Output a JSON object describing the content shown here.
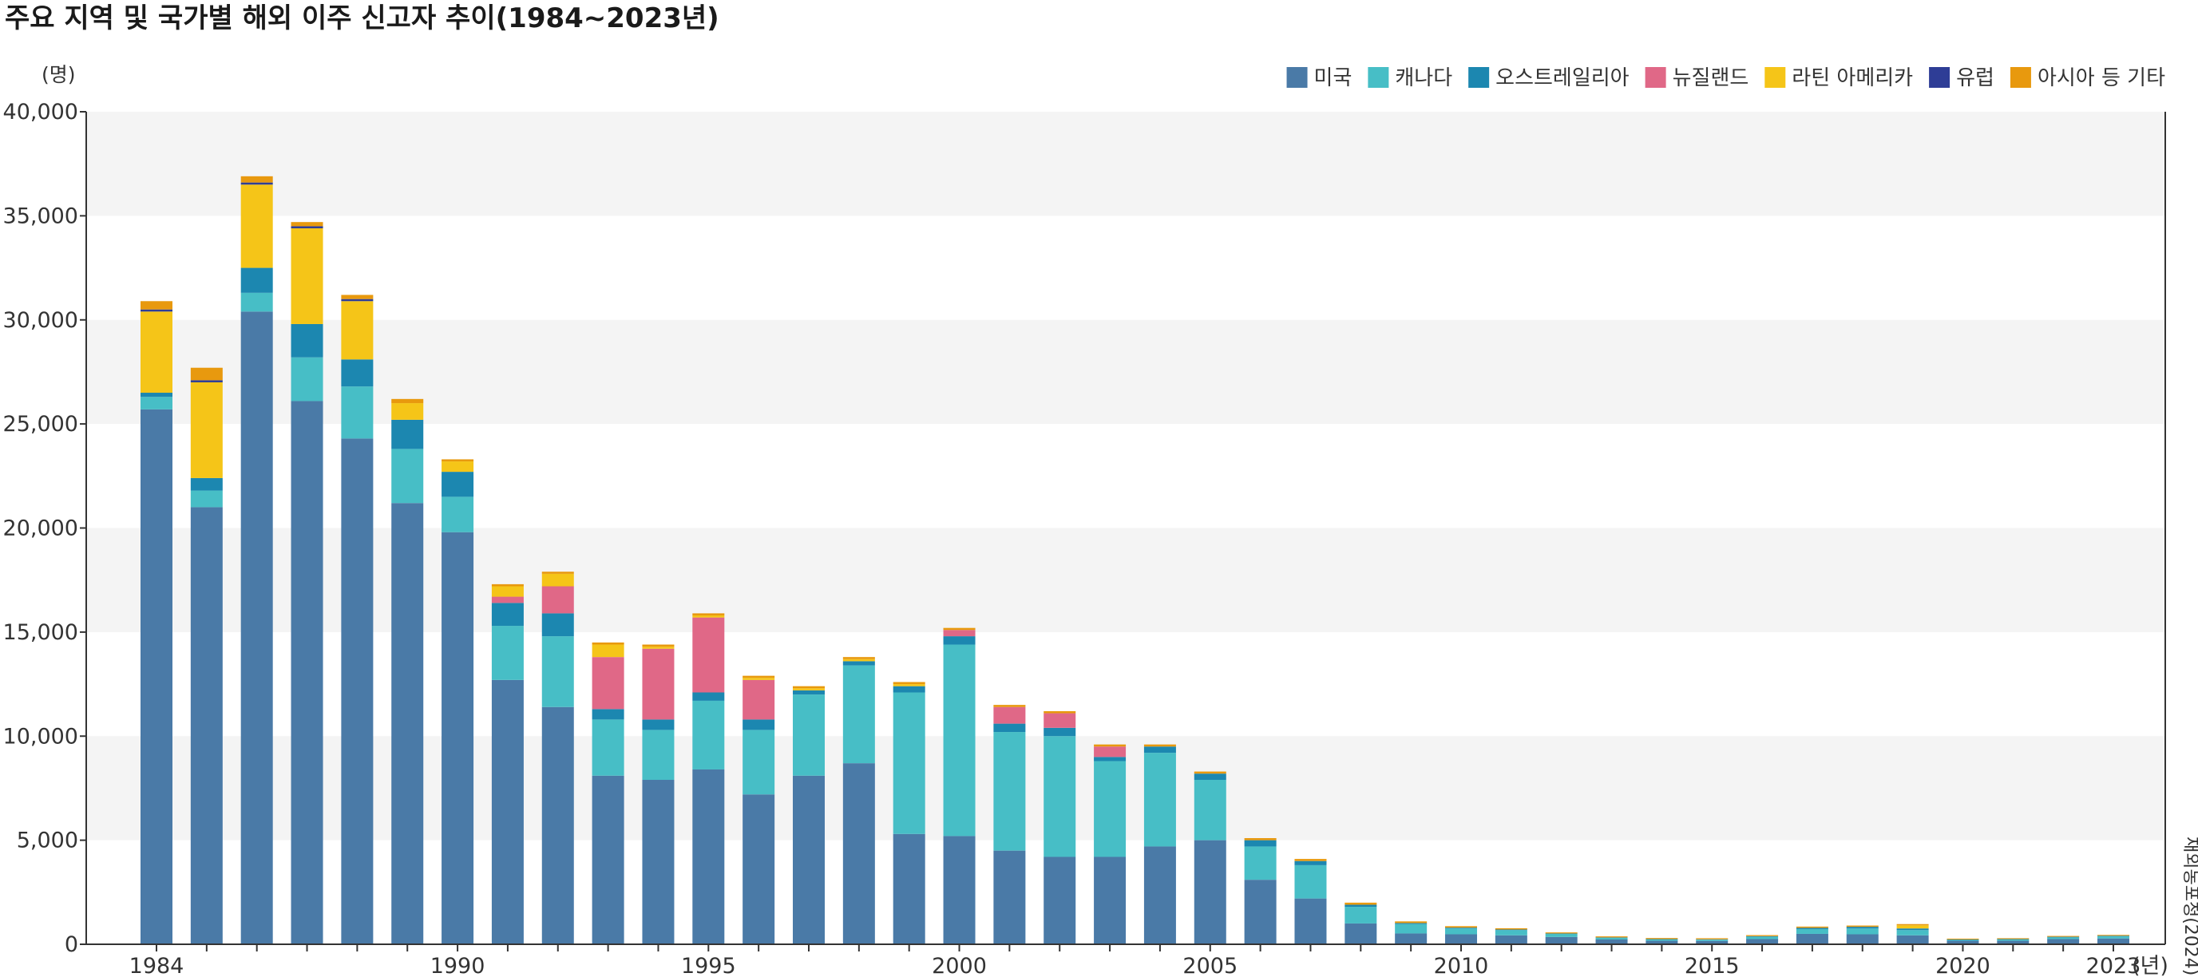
{
  "chart_data": {
    "type": "bar",
    "stacked": true,
    "title": "주요 지역 및 국가별 해외 이주 신고자 추이(1984~2023년)",
    "ylabel": "(명)",
    "xlabel": "(년)",
    "source": "재외동포청(2024)",
    "ylim": [
      0,
      40000
    ],
    "yticks": [
      "0",
      "5,000",
      "10,000",
      "15,000",
      "20,000",
      "25,000",
      "30,000",
      "35,000",
      "40,000"
    ],
    "xtick_labels": [
      "1984",
      "1990",
      "1995",
      "2000",
      "2005",
      "2010",
      "2015",
      "2020",
      "2023"
    ],
    "grid": "alternating horizontal bands",
    "legend_position": "top-right",
    "categories": [
      "1984",
      "1985",
      "1986",
      "1987",
      "1988",
      "1989",
      "1990",
      "1991",
      "1992",
      "1993",
      "1994",
      "1995",
      "1996",
      "1997",
      "1998",
      "1999",
      "2000",
      "2001",
      "2002",
      "2003",
      "2004",
      "2005",
      "2006",
      "2007",
      "2008",
      "2009",
      "2010",
      "2011",
      "2012",
      "2013",
      "2014",
      "2015",
      "2016",
      "2017",
      "2018",
      "2019",
      "2020",
      "2021",
      "2022",
      "2023"
    ],
    "series": [
      {
        "name": "미국",
        "color": "#4a7aa7",
        "values": [
          25700,
          21000,
          30400,
          26100,
          24300,
          21200,
          19800,
          12700,
          11400,
          8100,
          7900,
          8400,
          7200,
          8100,
          8700,
          5300,
          5200,
          4500,
          4200,
          4200,
          4700,
          5000,
          3100,
          2200,
          1000,
          520,
          480,
          430,
          350,
          230,
          170,
          160,
          250,
          500,
          480,
          430,
          170,
          170,
          250,
          280
        ]
      },
      {
        "name": "캐나다",
        "color": "#47bec6",
        "values": [
          600,
          800,
          900,
          2100,
          2500,
          2600,
          1700,
          2600,
          3400,
          2700,
          2400,
          3300,
          3100,
          3900,
          4700,
          6800,
          9200,
          5700,
          5800,
          4600,
          4500,
          2900,
          1600,
          1600,
          800,
          450,
          280,
          250,
          150,
          80,
          60,
          60,
          110,
          230,
          280,
          250,
          40,
          60,
          80,
          100
        ]
      },
      {
        "name": "오스트레일리아",
        "color": "#1c87b0",
        "values": [
          200,
          600,
          1200,
          1600,
          1300,
          1400,
          1200,
          1100,
          1100,
          500,
          500,
          400,
          500,
          200,
          200,
          300,
          400,
          400,
          400,
          200,
          300,
          300,
          300,
          200,
          100,
          50,
          40,
          30,
          20,
          20,
          20,
          20,
          30,
          60,
          80,
          80,
          20,
          20,
          30,
          30
        ]
      },
      {
        "name": "뉴질랜드",
        "color": "#e06887",
        "values": [
          0,
          0,
          0,
          0,
          0,
          0,
          0,
          300,
          1300,
          2500,
          3400,
          3600,
          1900,
          0,
          0,
          0,
          300,
          800,
          700,
          500,
          0,
          0,
          0,
          0,
          0,
          0,
          0,
          0,
          0,
          0,
          0,
          0,
          0,
          0,
          0,
          0,
          0,
          0,
          0,
          0
        ]
      },
      {
        "name": "라틴 아메리카",
        "color": "#f5c518",
        "values": [
          3900,
          4600,
          4000,
          4600,
          2800,
          800,
          500,
          500,
          600,
          600,
          100,
          100,
          100,
          100,
          100,
          100,
          0,
          0,
          0,
          0,
          0,
          0,
          0,
          0,
          0,
          0,
          0,
          0,
          0,
          0,
          0,
          0,
          0,
          0,
          0,
          150,
          0,
          0,
          0,
          0
        ]
      },
      {
        "name": "유럽",
        "color": "#2e3d96",
        "values": [
          100,
          100,
          100,
          100,
          100,
          0,
          0,
          0,
          0,
          0,
          0,
          0,
          0,
          0,
          0,
          0,
          0,
          0,
          0,
          0,
          0,
          0,
          0,
          0,
          0,
          0,
          0,
          0,
          0,
          0,
          0,
          0,
          0,
          0,
          0,
          0,
          0,
          0,
          0,
          0
        ]
      },
      {
        "name": "아시아 등 기타",
        "color": "#e8990e",
        "values": [
          400,
          600,
          300,
          200,
          200,
          200,
          100,
          100,
          100,
          100,
          100,
          100,
          100,
          100,
          100,
          100,
          100,
          100,
          100,
          100,
          100,
          100,
          100,
          100,
          100,
          80,
          70,
          60,
          50,
          50,
          50,
          50,
          50,
          60,
          60,
          60,
          40,
          40,
          40,
          40
        ]
      }
    ]
  }
}
